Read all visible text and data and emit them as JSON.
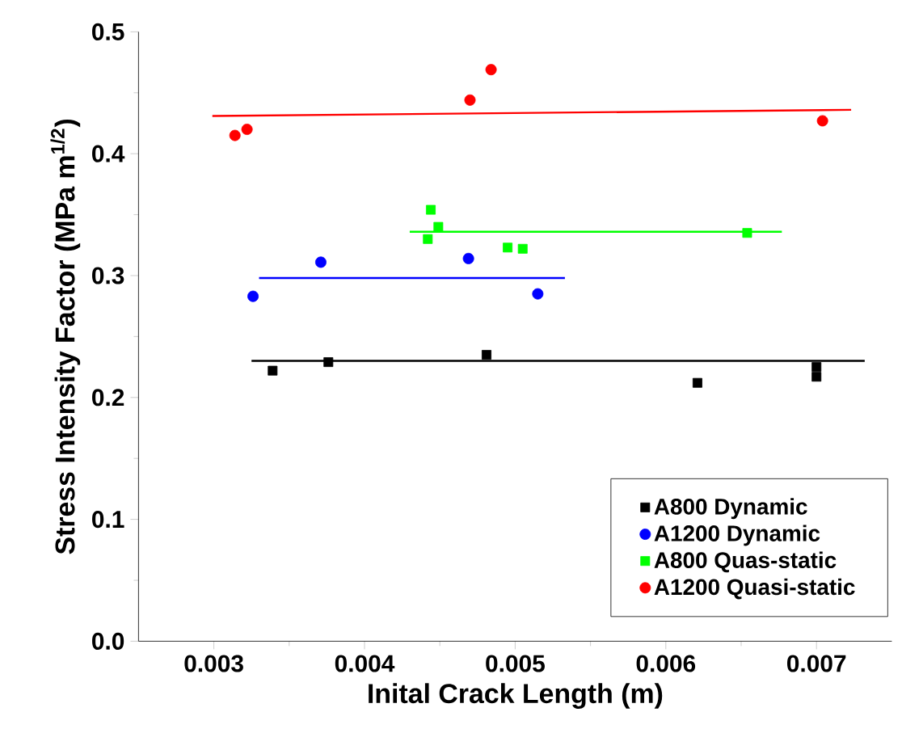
{
  "chart_data": {
    "type": "scatter",
    "xlabel": "Inital Crack Length (m)",
    "ylabel": "Stress Intensity Factor (MPa m$^{1/2}$)",
    "xlim": [
      0.0025,
      0.0075
    ],
    "xticks": [
      0.003,
      0.004,
      0.005,
      0.006,
      0.007
    ],
    "ylim": [
      0,
      0.5
    ],
    "yticks": [
      {
        "value": 0,
        "label": "0.0"
      },
      0.1,
      0.2,
      0.3,
      0.4,
      0.5
    ],
    "grid": false,
    "legend": "bottom right",
    "series": [
      {
        "name": "A800 Dynamic",
        "color": "#000000",
        "marker": "square",
        "x": [
          0.00339,
          0.00376,
          0.00481,
          0.00621,
          0.007,
          0.007
        ],
        "values": [
          0.222,
          0.229,
          0.235,
          0.212,
          0.225,
          0.217
        ]
      },
      {
        "name": "A1200 Dynamic",
        "color": "#0000ff",
        "marker": "circle",
        "x": [
          0.00326,
          0.00371,
          0.00469,
          0.00515
        ],
        "values": [
          0.283,
          0.311,
          0.314,
          0.285
        ]
      },
      {
        "name": "A800 Quas-static",
        "color": "#00ff00",
        "marker": "square",
        "x": [
          0.00442,
          0.00444,
          0.00449,
          0.00495,
          0.00505,
          0.00654
        ],
        "values": [
          0.33,
          0.354,
          0.34,
          0.323,
          0.322,
          0.335
        ]
      },
      {
        "name": "A1200 Quasi-static",
        "color": "#ff0000",
        "marker": "circle",
        "x": [
          0.00314,
          0.00322,
          0.0047,
          0.00484,
          0.00704
        ],
        "values": [
          0.415,
          0.42,
          0.444,
          0.469,
          0.427
        ]
      },
      {
        "type": "line",
        "color": "#000000",
        "marker": "none",
        "x": [
          0.00325,
          0.00732
        ],
        "values": [
          0.23,
          0.23
        ]
      },
      {
        "type": "line",
        "color": "#0000ff",
        "marker": "none",
        "x": [
          0.0033,
          0.00533
        ],
        "values": [
          0.298,
          0.298
        ]
      },
      {
        "type": "line",
        "color": "#00ff00",
        "marker": "none",
        "x": [
          0.0043,
          0.00677
        ],
        "values": [
          0.336,
          0.336
        ]
      },
      {
        "type": "line",
        "color": "#ff0000",
        "marker": "none",
        "x": [
          0.00299,
          0.00723
        ],
        "values": [
          0.431,
          0.436
        ]
      }
    ]
  }
}
